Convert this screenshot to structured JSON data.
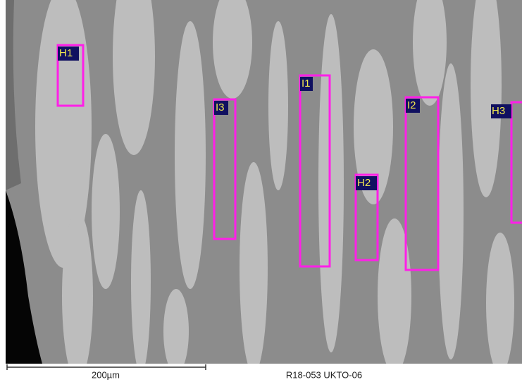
{
  "regions": [
    {
      "label": "H1"
    },
    {
      "label": "I3"
    },
    {
      "label": "I1"
    },
    {
      "label": "H2"
    },
    {
      "label": "I2"
    },
    {
      "label": "H3"
    }
  ],
  "scale_bar": {
    "label": "200µm"
  },
  "sample_id": "R18-053 UKTO-06"
}
